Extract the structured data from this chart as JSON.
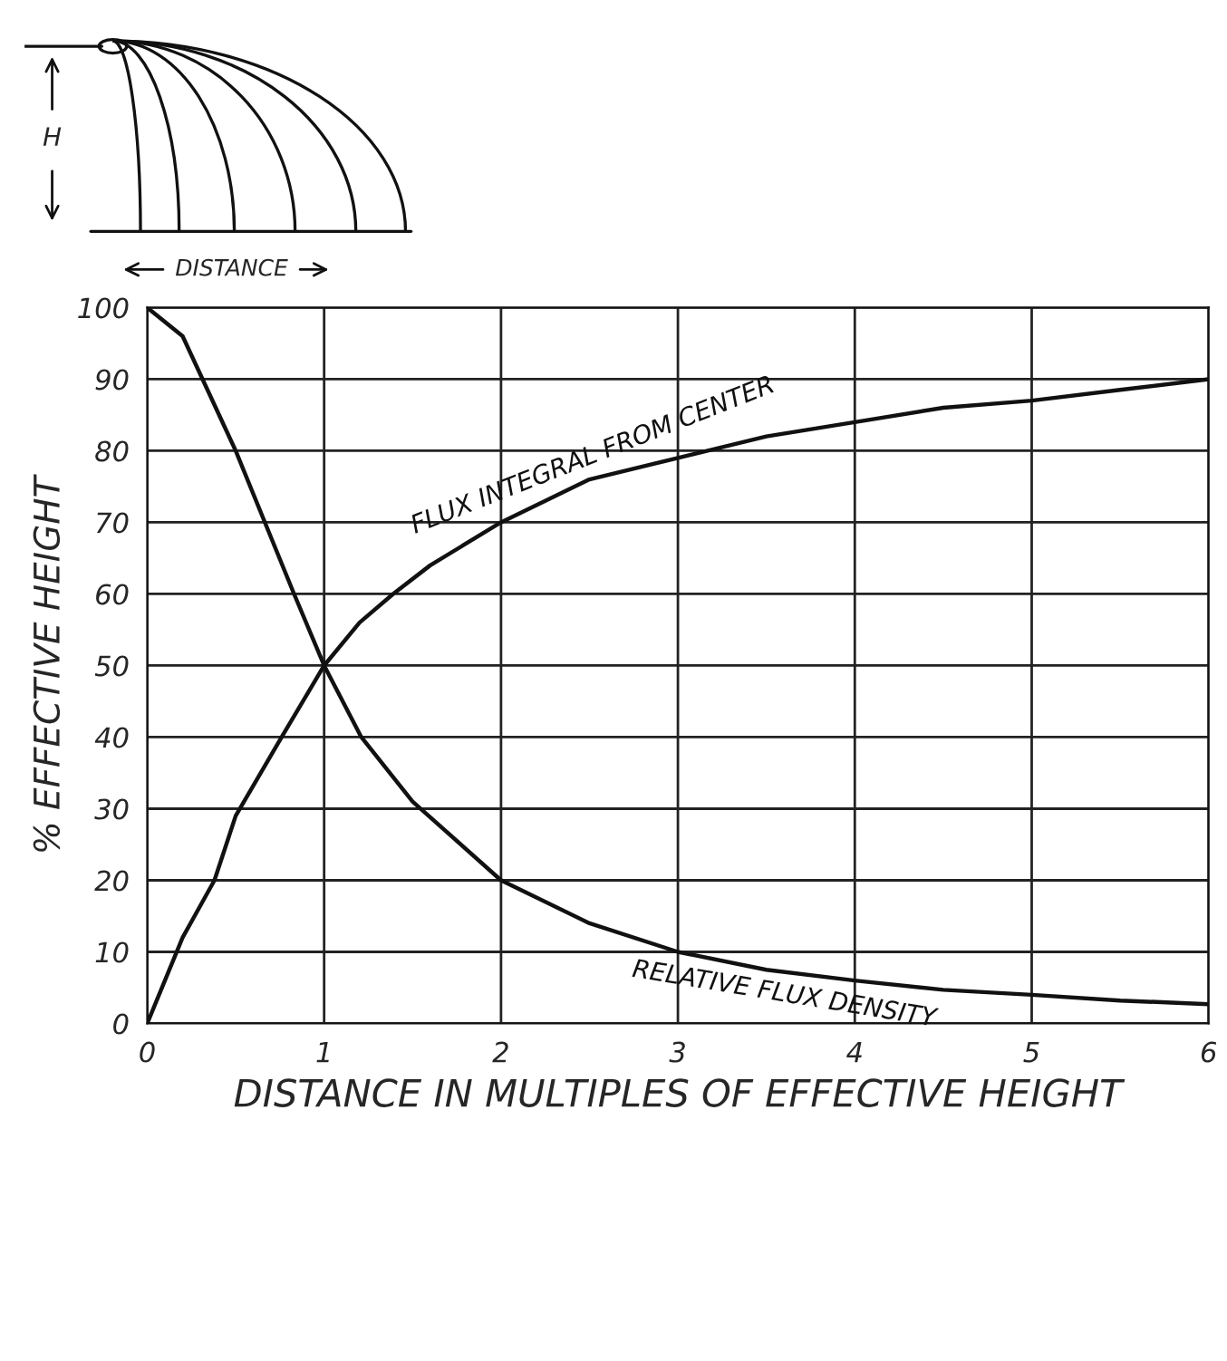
{
  "chart_data": {
    "type": "line",
    "xlabel": "DISTANCE IN MULTIPLES OF EFFECTIVE HEIGHT",
    "ylabel": "% EFFECTIVE HEIGHT",
    "annotations": [
      "H",
      "DISTANCE"
    ],
    "xlim": [
      0,
      6
    ],
    "xticks": [
      0,
      1,
      2,
      3,
      4,
      5,
      6
    ],
    "ylim": [
      0,
      100
    ],
    "yticks": [
      0,
      10,
      20,
      30,
      40,
      50,
      60,
      70,
      80,
      90,
      100
    ],
    "grid": true,
    "marker": "none",
    "line_style": "solid",
    "series": [
      {
        "name": "FLUX INTEGRAL FROM CENTER",
        "color": "#111111",
        "x": [
          0,
          0.2,
          0.38,
          0.5,
          0.76,
          1,
          1.2,
          1.39,
          1.6,
          2,
          2.5,
          3,
          3.5,
          4,
          4.5,
          5,
          5.5,
          6
        ],
        "values": [
          0,
          12,
          20,
          29,
          40,
          50,
          56,
          60,
          64,
          70,
          76,
          79,
          82,
          84,
          86,
          87,
          88.5,
          90
        ]
      },
      {
        "name": "RELATIVE FLUX DENSITY",
        "color": "#111111",
        "x": [
          0,
          0.2,
          0.5,
          0.83,
          1,
          1.21,
          1.5,
          2,
          2.5,
          3,
          3.5,
          4,
          4.5,
          5,
          5.5,
          6
        ],
        "values": [
          100,
          96,
          80,
          60,
          50,
          40,
          31,
          20,
          14,
          10,
          7.5,
          6,
          4.7,
          4,
          3.2,
          2.7
        ]
      }
    ]
  }
}
